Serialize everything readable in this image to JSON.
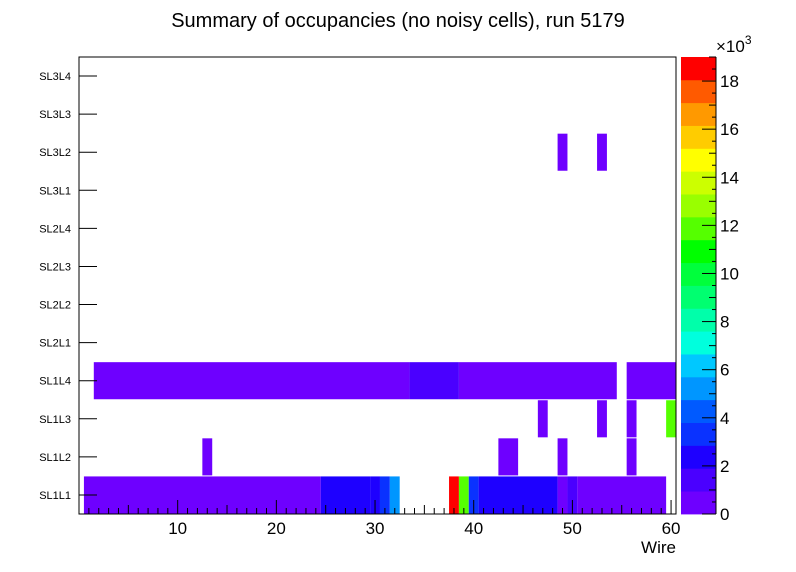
{
  "chart_data": {
    "type": "heatmap",
    "title": "Summary of occupancies (no noisy cells), run 5179",
    "xlabel": "Wire",
    "ylabel": "",
    "xlim": [
      0,
      60.5
    ],
    "x_ticks": [
      10,
      20,
      30,
      40,
      50,
      60
    ],
    "y_categories": [
      "SL1L1",
      "SL1L2",
      "SL1L3",
      "SL1L4",
      "SL2L1",
      "SL2L2",
      "SL2L3",
      "SL2L4",
      "SL3L1",
      "SL3L2",
      "SL3L3",
      "SL3L4"
    ],
    "z_axis": {
      "min": 0,
      "max": 19,
      "multiplier_label": "×10",
      "multiplier_exponent": "3",
      "ticks": [
        0,
        2,
        4,
        6,
        8,
        10,
        12,
        14,
        16,
        18
      ],
      "palette": [
        "#6e00ff",
        "#4a00ff",
        "#1e00ff",
        "#0a32ff",
        "#005aff",
        "#0096ff",
        "#00c8ff",
        "#00ffdd",
        "#00ffaa",
        "#00ff70",
        "#00ff3c",
        "#00ff00",
        "#55ff00",
        "#99ff00",
        "#ccff00",
        "#ffff00",
        "#ffcc00",
        "#ff9900",
        "#ff5a00",
        "#ff0000"
      ]
    },
    "cells": [
      {
        "row": "SL1L1",
        "x0": 0.5,
        "x1": 24.5,
        "z": 0.5
      },
      {
        "row": "SL1L1",
        "x0": 24.5,
        "x1": 29.5,
        "z": 2.2
      },
      {
        "row": "SL1L1",
        "x0": 29.5,
        "x1": 30.5,
        "z": 2.8
      },
      {
        "row": "SL1L1",
        "x0": 30.5,
        "x1": 31.5,
        "z": 3.6
      },
      {
        "row": "SL1L1",
        "x0": 31.5,
        "x1": 32.5,
        "z": 5.5
      },
      {
        "row": "SL1L1",
        "x0": 37.5,
        "x1": 38.5,
        "z": 18.5
      },
      {
        "row": "SL1L1",
        "x0": 38.5,
        "x1": 39.5,
        "z": 11.5
      },
      {
        "row": "SL1L1",
        "x0": 39.5,
        "x1": 40.5,
        "z": 3.2
      },
      {
        "row": "SL1L1",
        "x0": 40.5,
        "x1": 48.5,
        "z": 2.1
      },
      {
        "row": "SL1L1",
        "x0": 48.5,
        "x1": 49.5,
        "z": 0.6
      },
      {
        "row": "SL1L1",
        "x0": 49.5,
        "x1": 50.5,
        "z": 1.8
      },
      {
        "row": "SL1L1",
        "x0": 50.5,
        "x1": 59.5,
        "z": 0.5
      },
      {
        "row": "SL1L2",
        "x0": 12.5,
        "x1": 13.5,
        "z": 0.5
      },
      {
        "row": "SL1L2",
        "x0": 42.5,
        "x1": 44.5,
        "z": 0.5
      },
      {
        "row": "SL1L2",
        "x0": 48.5,
        "x1": 49.5,
        "z": 0.5
      },
      {
        "row": "SL1L2",
        "x0": 55.5,
        "x1": 56.5,
        "z": 0.5
      },
      {
        "row": "SL1L3",
        "x0": 46.5,
        "x1": 47.5,
        "z": 0.5
      },
      {
        "row": "SL1L3",
        "x0": 52.5,
        "x1": 53.5,
        "z": 0.5
      },
      {
        "row": "SL1L3",
        "x0": 55.5,
        "x1": 56.5,
        "z": 0.5
      },
      {
        "row": "SL1L3",
        "x0": 59.5,
        "x1": 60.5,
        "z": 11.6
      },
      {
        "row": "SL1L4",
        "x0": 1.5,
        "x1": 33.5,
        "z": 0.5
      },
      {
        "row": "SL1L4",
        "x0": 33.5,
        "x1": 38.5,
        "z": 1.3
      },
      {
        "row": "SL1L4",
        "x0": 38.5,
        "x1": 54.5,
        "z": 0.5
      },
      {
        "row": "SL1L4",
        "x0": 55.5,
        "x1": 60.5,
        "z": 0.5
      },
      {
        "row": "SL3L2",
        "x0": 48.5,
        "x1": 49.5,
        "z": 0.5
      },
      {
        "row": "SL3L2",
        "x0": 52.5,
        "x1": 53.5,
        "z": 0.5
      }
    ]
  }
}
